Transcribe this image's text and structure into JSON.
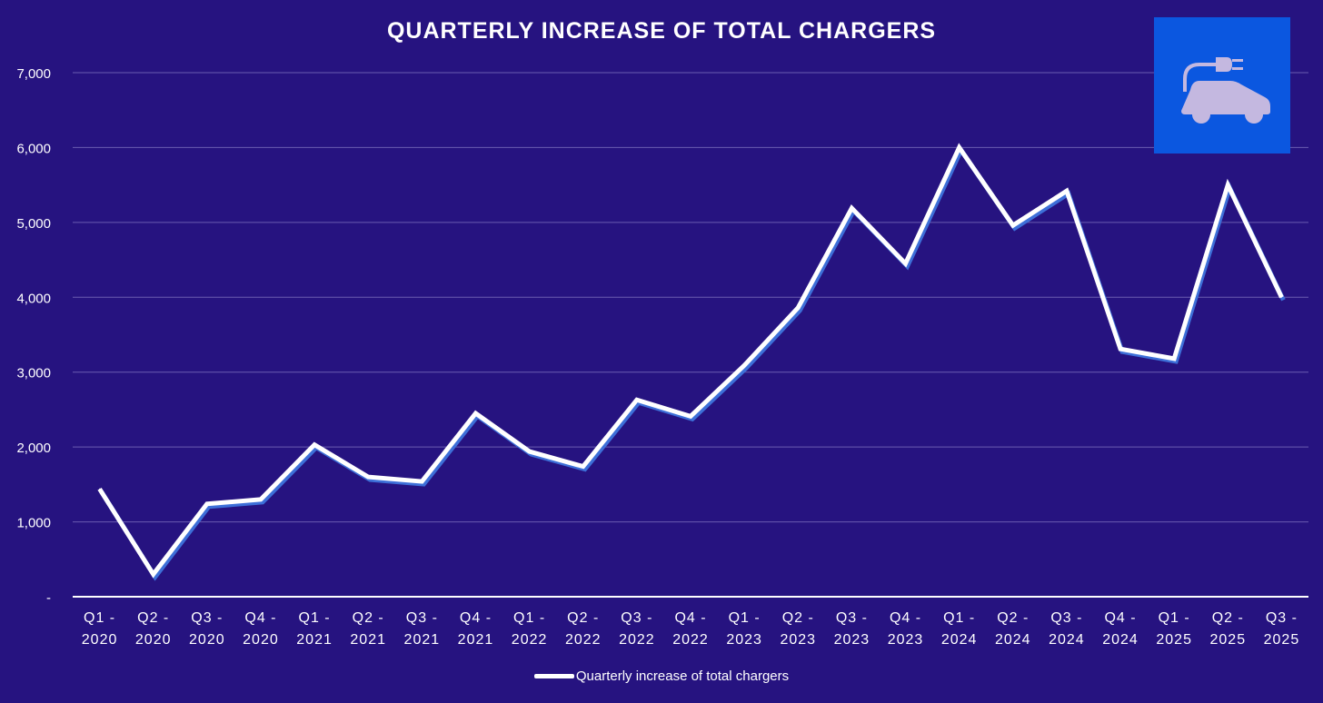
{
  "chart_data": {
    "type": "line",
    "title": "QUARTERLY INCREASE OF TOTAL CHARGERS",
    "xlabel": "",
    "ylabel": "",
    "ylim": [
      0,
      7000
    ],
    "yticks": [
      0,
      1000,
      2000,
      3000,
      4000,
      5000,
      6000,
      7000
    ],
    "ytick_labels": [
      "-",
      "1,000",
      "2,000",
      "3,000",
      "4,000",
      "5,000",
      "6,000",
      "7,000"
    ],
    "grid": true,
    "legend_position": "bottom",
    "categories": [
      "Q1 -\n2020",
      "Q2 -\n2020",
      "Q3 -\n2020",
      "Q4 -\n2020",
      "Q1 -\n2021",
      "Q2 -\n2021",
      "Q3 -\n2021",
      "Q4 -\n2021",
      "Q1 -\n2022",
      "Q2 -\n2022",
      "Q3 -\n2022",
      "Q4 -\n2022",
      "Q1 -\n2023",
      "Q2 -\n2023",
      "Q3 -\n2023",
      "Q4 -\n2023",
      "Q1 -\n2024",
      "Q2 -\n2024",
      "Q3 -\n2024",
      "Q4 -\n2024",
      "Q1 -\n2025",
      "Q2 -\n2025",
      "Q3 -\n2025"
    ],
    "series": [
      {
        "name": "Quarterly increase of total chargers",
        "color": "#ffffff",
        "values": [
          1440,
          300,
          1240,
          1300,
          2030,
          1600,
          1540,
          2450,
          1940,
          1740,
          2630,
          2410,
          3090,
          3860,
          5190,
          4450,
          6000,
          4960,
          5420,
          3310,
          3180,
          5500,
          4000
        ]
      }
    ]
  },
  "colors": {
    "background": "#261380",
    "icon_box": "#0b57e0",
    "icon_fill": "#c4b8e0",
    "grid": "#6a5cb0"
  },
  "icon": "electric-car-charging-icon"
}
